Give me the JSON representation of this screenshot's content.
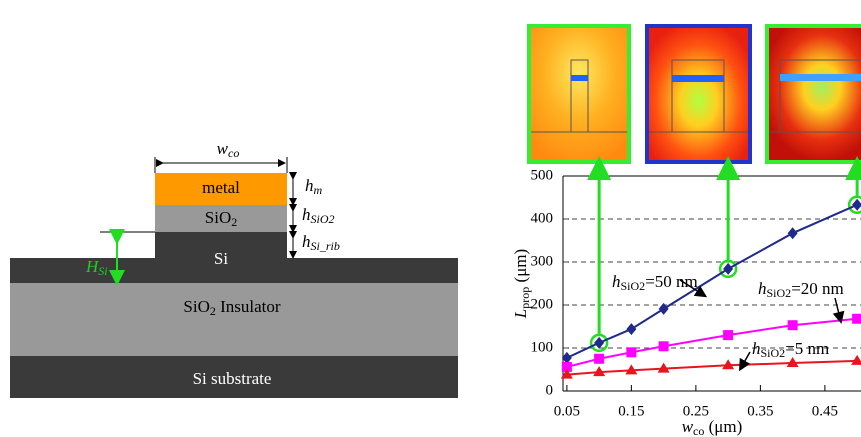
{
  "diagram": {
    "layers": {
      "metal": "metal",
      "oxide": {
        "main": "SiO",
        "sub": "2"
      },
      "rib": "Si",
      "insulator": {
        "main": "SiO",
        "sub": "2",
        "rest": " Insulator"
      },
      "substrate": "Si substrate"
    },
    "dimensions": {
      "width": {
        "main": "w",
        "sub": "co"
      },
      "metal_height": {
        "main": "h",
        "sub": "m"
      },
      "oxide_height": {
        "main": "h",
        "sub": "SiO2"
      },
      "rib_height": {
        "main": "h",
        "sub": "Si_rib"
      },
      "si_height": {
        "main": "H",
        "sub": "Si"
      }
    }
  },
  "chart_data": {
    "type": "line",
    "x_label": {
      "main": "w",
      "sub": "co",
      "rest": " (μm)"
    },
    "y_label": {
      "main": "L",
      "sub": "prop",
      "rest": " (μm)"
    },
    "x": [
      0.05,
      0.1,
      0.15,
      0.2,
      0.3,
      0.4,
      0.5
    ],
    "xlim": [
      0.044,
      0.506
    ],
    "xticks": [
      0.05,
      0.15,
      0.25,
      0.35,
      0.45
    ],
    "ylim": [
      0,
      500
    ],
    "yticks": [
      0,
      100,
      200,
      300,
      400,
      500
    ],
    "grid": true,
    "series": [
      {
        "name": {
          "main": "h",
          "sub": "SiO2",
          "rest": "=50 nm"
        },
        "color": "#1f2a8a",
        "marker": "diamond",
        "values": [
          77,
          112,
          144,
          191,
          284,
          367,
          433
        ]
      },
      {
        "name": {
          "main": "h",
          "sub": "SiO2",
          "rest": "=20 nm"
        },
        "color": "#ff00ff",
        "marker": "square",
        "values": [
          56,
          75,
          90,
          104,
          130,
          153,
          168
        ]
      },
      {
        "name": {
          "main": "h",
          "sub": "SiO2",
          "rest": "=5 nm"
        },
        "color": "#e8141e",
        "marker": "triangle",
        "values": [
          38,
          44,
          48,
          52,
          60,
          65,
          70
        ]
      }
    ]
  }
}
